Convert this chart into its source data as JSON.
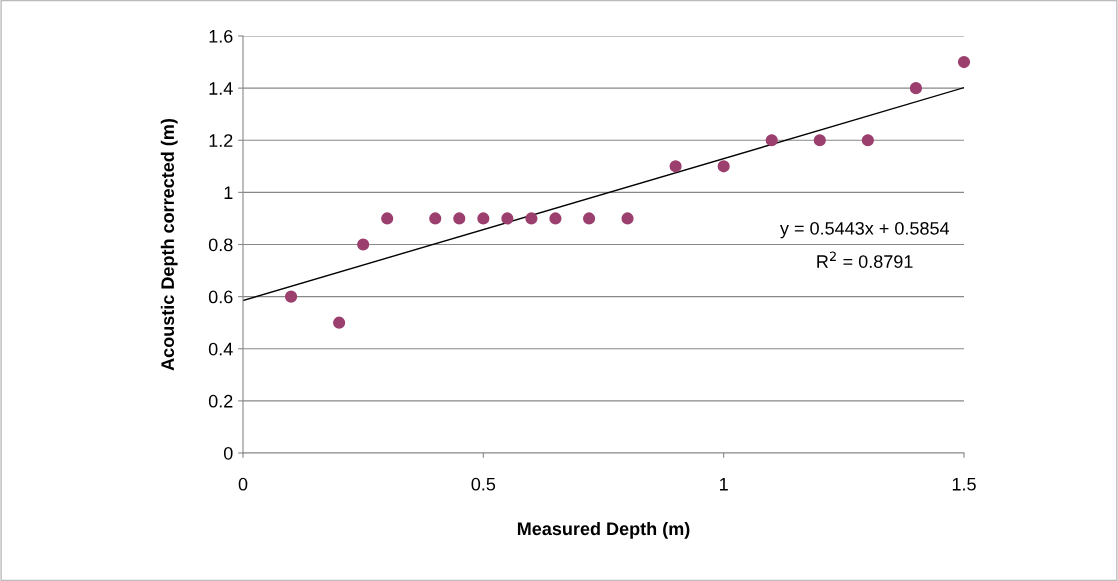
{
  "chart_data": {
    "type": "scatter",
    "xlabel": "Measured Depth (m)",
    "ylabel": "Acoustic Depth corrected (m)",
    "xlim": [
      0,
      1.5
    ],
    "xticks": [
      0,
      0.5,
      1,
      1.5
    ],
    "ylim": [
      0,
      1.6
    ],
    "yticks": [
      0,
      0.2,
      0.4,
      0.6,
      0.8,
      1,
      1.2,
      1.4,
      1.6
    ],
    "grid": "y",
    "series": [
      {
        "marker": "circle",
        "color": "#9b3f6e",
        "x": [
          0.1,
          0.2,
          0.25,
          0.3,
          0.4,
          0.45,
          0.5,
          0.55,
          0.6,
          0.65,
          0.72,
          0.8,
          0.9,
          1.0,
          1.1,
          1.2,
          1.3,
          1.4,
          1.5
        ],
        "values": [
          0.6,
          0.5,
          0.8,
          0.9,
          0.9,
          0.9,
          0.9,
          0.9,
          0.9,
          0.9,
          0.9,
          0.9,
          1.1,
          1.1,
          1.2,
          1.2,
          1.2,
          1.4,
          1.5
        ]
      },
      {
        "type": "line",
        "color": "#000000",
        "x": [
          0,
          1.5
        ],
        "values": [
          0.585,
          1.402
        ]
      }
    ],
    "annotations": [
      "y = 0.5443x + 0.5854",
      "R$^{2}$ = 0.8791"
    ]
  }
}
